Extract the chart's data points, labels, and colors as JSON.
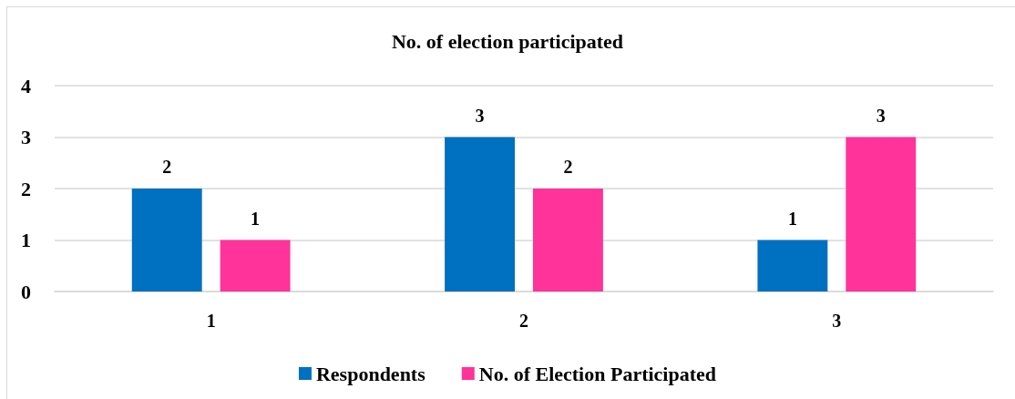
{
  "chart_data": {
    "type": "bar",
    "title": "No. of election participated",
    "categories": [
      "1",
      "2",
      "3"
    ],
    "series": [
      {
        "name": "Respondents",
        "color": "#0070c0",
        "values": [
          2,
          3,
          1
        ]
      },
      {
        "name": "No. of Election Participated",
        "color": "#ff3399",
        "values": [
          1,
          2,
          3
        ]
      }
    ],
    "ylim": [
      0,
      4
    ],
    "yticks": [
      0,
      1,
      2,
      3,
      4
    ],
    "grid": "y",
    "legend": "bottom",
    "data_labels": true
  }
}
